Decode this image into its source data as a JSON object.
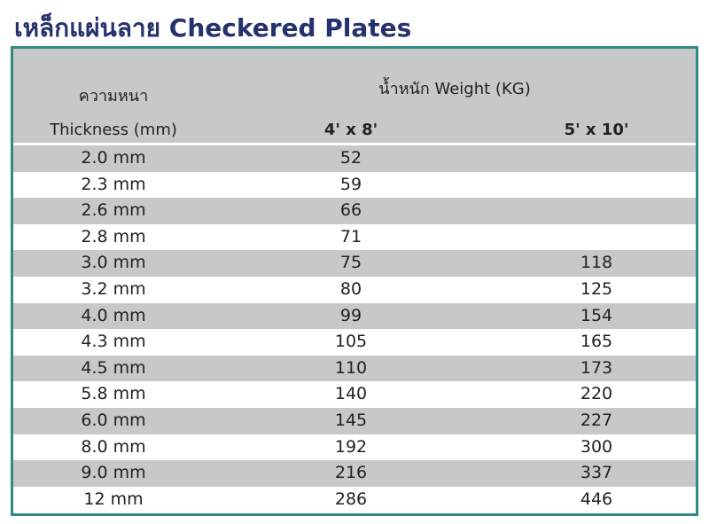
{
  "header": {
    "title": "เหล็กแผ่นลาย Checkered Plates"
  },
  "table": {
    "columns": {
      "thickness_th": "ความหนา",
      "thickness_en": "Thickness (mm)",
      "weight": "น้ำหนัก Weight (KG)",
      "size_1": "4' x 8'",
      "size_2": "5' x 10'"
    },
    "rows": [
      [
        "2.0 mm",
        52,
        null
      ],
      [
        "2.3 mm",
        59,
        null
      ],
      [
        "2.6 mm",
        66,
        null
      ],
      [
        "2.8 mm",
        71,
        null
      ],
      [
        "3.0 mm",
        75,
        118
      ],
      [
        "3.2 mm",
        80,
        125
      ],
      [
        "4.0 mm",
        99,
        154
      ],
      [
        "4.3 mm",
        105,
        165
      ],
      [
        "4.5 mm",
        110,
        173
      ],
      [
        "5.8 mm",
        140,
        220
      ],
      [
        "6.0 mm",
        145,
        227
      ],
      [
        "8.0 mm",
        192,
        300
      ],
      [
        "9.0 mm",
        216,
        337
      ],
      [
        "12 mm",
        286,
        446
      ]
    ]
  }
}
